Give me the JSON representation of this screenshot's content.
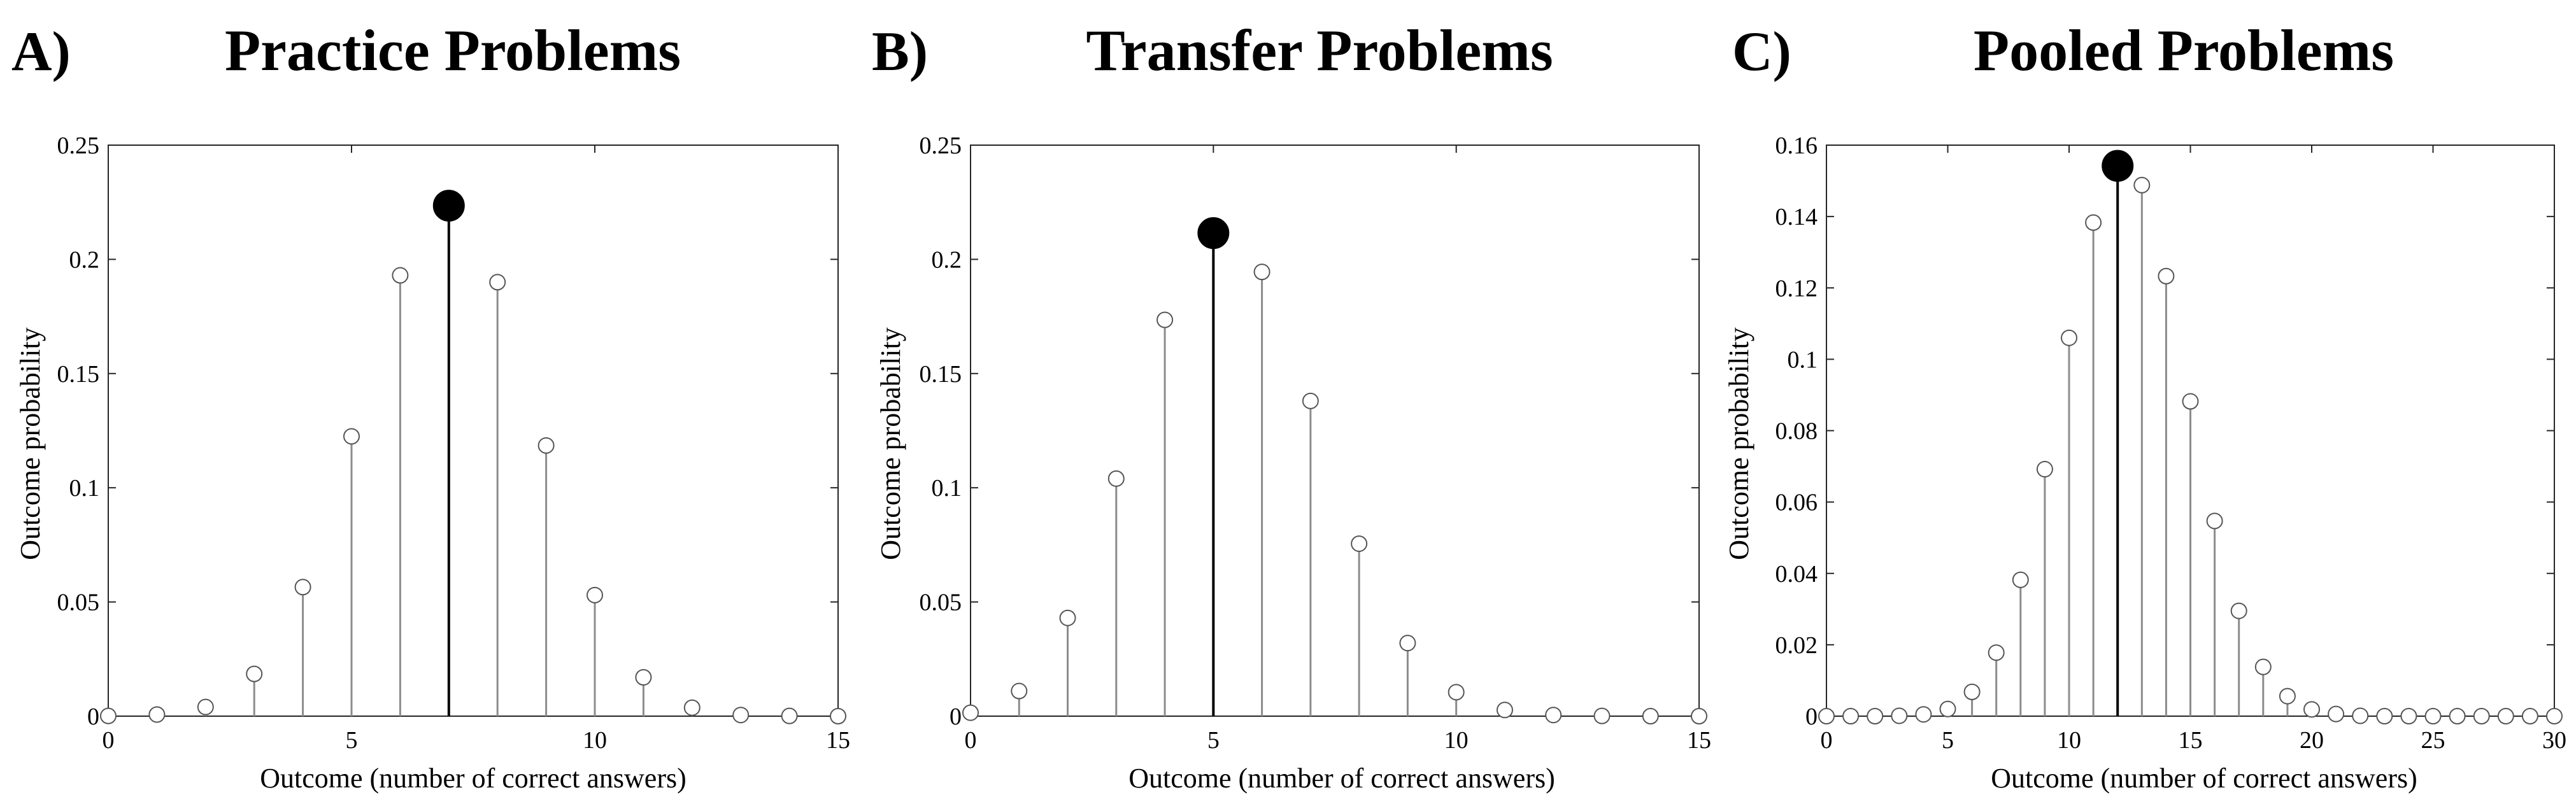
{
  "figure": {
    "background": "#ffffff"
  },
  "chart_data": [
    {
      "type": "stem",
      "panel_label": "A)",
      "title": "Practice Problems",
      "xlabel": "Outcome (number of correct answers)",
      "ylabel": "Outcome probability",
      "xlim": [
        0,
        15
      ],
      "ylim": [
        0,
        0.25
      ],
      "xticks": [
        0,
        5,
        10,
        15
      ],
      "xtick_labels": [
        "0",
        "5",
        "10",
        "15"
      ],
      "yticks": [
        0,
        0.05,
        0.1,
        0.15,
        0.2,
        0.25
      ],
      "ytick_labels": [
        "0",
        "0.05",
        "0.1",
        "0.15",
        "0.2",
        "0.25"
      ],
      "grid": false,
      "x": [
        0,
        1,
        2,
        3,
        4,
        5,
        6,
        7,
        8,
        9,
        10,
        11,
        12,
        13,
        14,
        15
      ],
      "y": [
        0.0001,
        0.0007,
        0.004,
        0.0185,
        0.0565,
        0.1225,
        0.193,
        0.2235,
        0.19,
        0.1185,
        0.053,
        0.017,
        0.0037,
        0.0005,
        0.0001,
        0.0
      ],
      "highlight_x": 7,
      "colors": {
        "stem": "#8c8c8c",
        "highlight": "#000000",
        "marker_edge": "#555555"
      }
    },
    {
      "type": "stem",
      "panel_label": "B)",
      "title": "Transfer Problems",
      "xlabel": "Outcome (number of correct answers)",
      "ylabel": "Outcome probability",
      "xlim": [
        0,
        15
      ],
      "ylim": [
        0,
        0.25
      ],
      "xticks": [
        0,
        5,
        10,
        15
      ],
      "xtick_labels": [
        "0",
        "5",
        "10",
        "15"
      ],
      "yticks": [
        0,
        0.05,
        0.1,
        0.15,
        0.2,
        0.25
      ],
      "ytick_labels": [
        "0",
        "0.05",
        "0.1",
        "0.15",
        "0.2",
        "0.25"
      ],
      "grid": false,
      "x": [
        0,
        1,
        2,
        3,
        4,
        5,
        6,
        7,
        8,
        9,
        10,
        11,
        12,
        13,
        14,
        15
      ],
      "y": [
        0.0015,
        0.011,
        0.043,
        0.104,
        0.1735,
        0.2115,
        0.1945,
        0.138,
        0.0755,
        0.032,
        0.0105,
        0.0027,
        0.0005,
        0.0001,
        0.0,
        0.0
      ],
      "highlight_x": 5,
      "colors": {
        "stem": "#8c8c8c",
        "highlight": "#000000",
        "marker_edge": "#555555"
      }
    },
    {
      "type": "stem",
      "panel_label": "C)",
      "title": "Pooled Problems",
      "xlabel": "Outcome (number of correct answers)",
      "ylabel": "Outcome probability",
      "xlim": [
        0,
        30
      ],
      "ylim": [
        0,
        0.16
      ],
      "xticks": [
        0,
        5,
        10,
        15,
        20,
        25,
        30
      ],
      "xtick_labels": [
        "0",
        "5",
        "10",
        "15",
        "20",
        "25",
        "30"
      ],
      "yticks": [
        0,
        0.02,
        0.04,
        0.06,
        0.08,
        0.1,
        0.12,
        0.14,
        0.16
      ],
      "ytick_labels": [
        "0",
        "0.02",
        "0.04",
        "0.06",
        "0.08",
        "0.1",
        "0.12",
        "0.14",
        "0.16"
      ],
      "grid": false,
      "x": [
        0,
        1,
        2,
        3,
        4,
        5,
        6,
        7,
        8,
        9,
        10,
        11,
        12,
        13,
        14,
        15,
        16,
        17,
        18,
        19,
        20,
        21,
        22,
        23,
        24,
        25,
        26,
        27,
        28,
        29,
        30
      ],
      "y": [
        0.0,
        0.0,
        0.0,
        0.0001,
        0.0005,
        0.002,
        0.0068,
        0.0178,
        0.0382,
        0.0692,
        0.106,
        0.1383,
        0.1542,
        0.1488,
        0.1233,
        0.0882,
        0.0547,
        0.0295,
        0.0138,
        0.0056,
        0.0019,
        0.0006,
        0.0001,
        0.0,
        0.0,
        0.0,
        0.0,
        0.0,
        0.0,
        0.0,
        0.0
      ],
      "highlight_x": 12,
      "colors": {
        "stem": "#8c8c8c",
        "highlight": "#000000",
        "marker_edge": "#555555"
      }
    }
  ]
}
